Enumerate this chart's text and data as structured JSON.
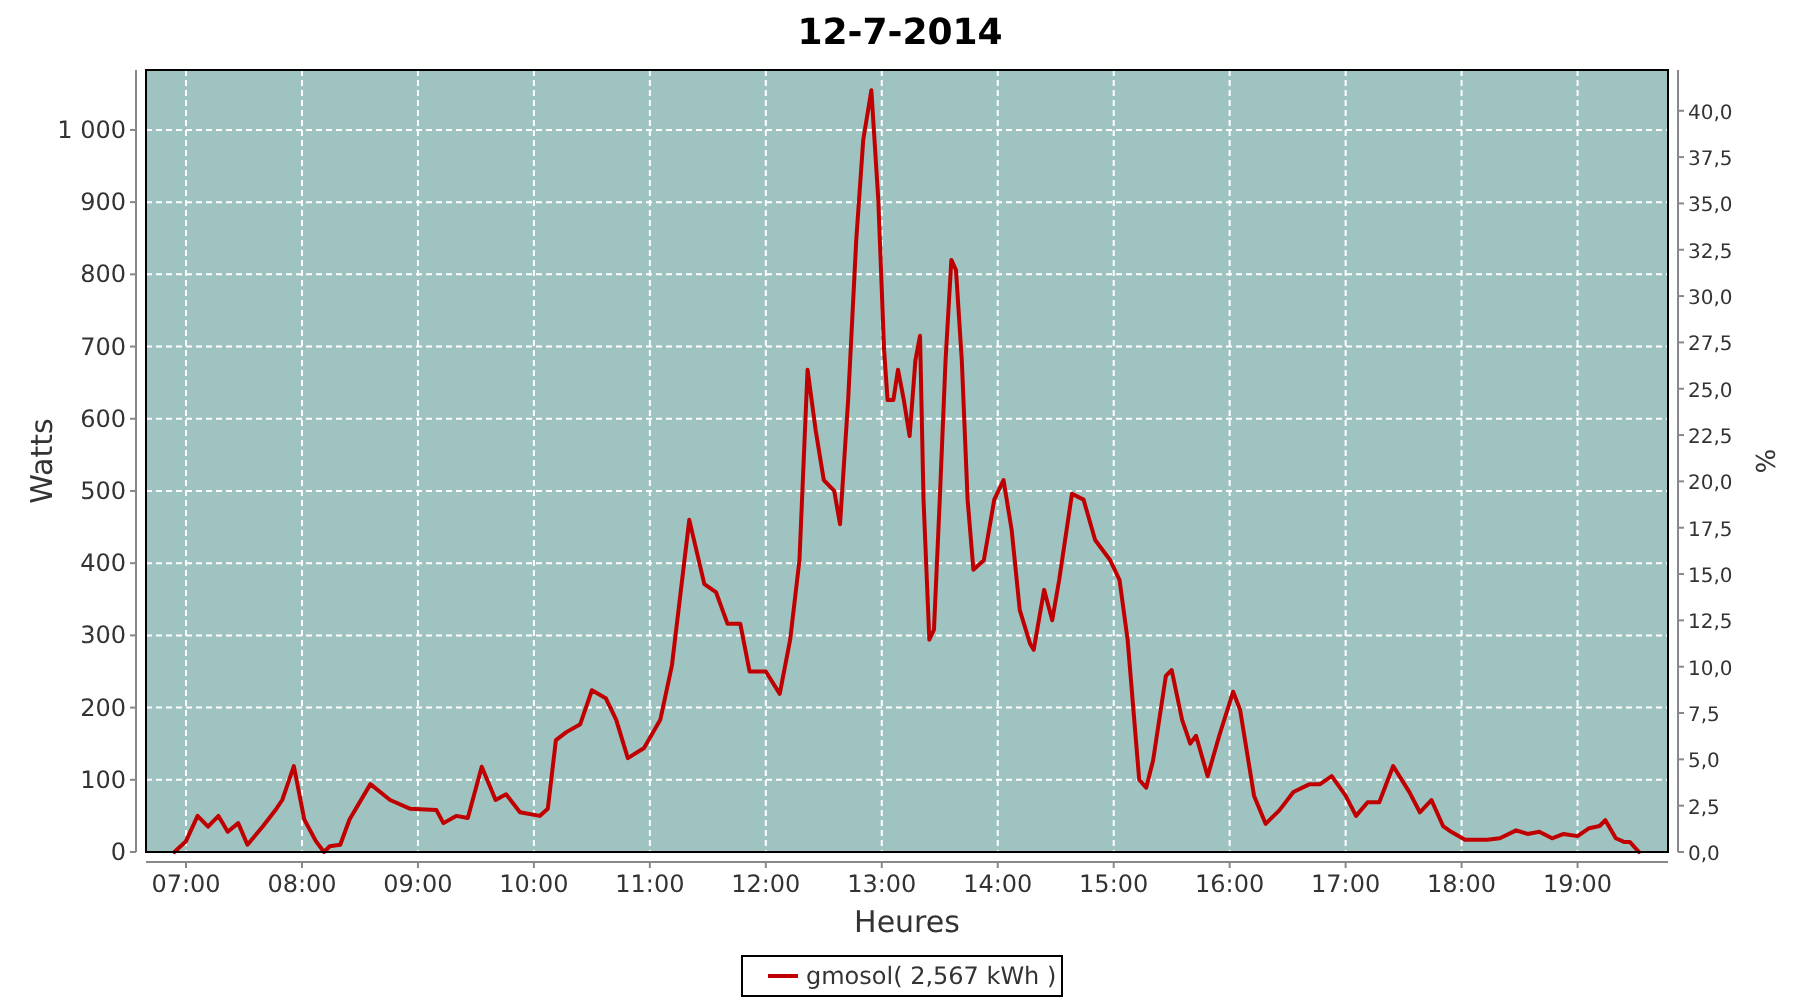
{
  "chart_data": {
    "type": "line",
    "title": "12-7-2014",
    "xlabel": "Heures",
    "ylabel": "Watts",
    "y2label": "%",
    "x": [
      6.9,
      7.0,
      7.1,
      7.19,
      7.28,
      7.36,
      7.45,
      7.53,
      7.66,
      7.78,
      7.83,
      7.93,
      8.02,
      8.12,
      8.19,
      8.24,
      8.33,
      8.41,
      8.59,
      8.76,
      8.93,
      9.16,
      9.22,
      9.33,
      9.43,
      9.55,
      9.67,
      9.76,
      9.88,
      10.05,
      10.12,
      10.19,
      10.28,
      10.4,
      10.5,
      10.62,
      10.71,
      10.81,
      10.95,
      11.09,
      11.19,
      11.34,
      11.47,
      11.57,
      11.67,
      11.78,
      11.86,
      12.0,
      12.12,
      12.21,
      12.29,
      12.36,
      12.43,
      12.5,
      12.59,
      12.64,
      12.71,
      12.78,
      12.84,
      12.91,
      12.97,
      13.02,
      13.05,
      13.1,
      13.14,
      13.19,
      13.24,
      13.29,
      13.33,
      13.36,
      13.41,
      13.45,
      13.5,
      13.55,
      13.6,
      13.64,
      13.69,
      13.74,
      13.79,
      13.88,
      13.97,
      14.05,
      14.12,
      14.19,
      14.28,
      14.31,
      14.4,
      14.47,
      14.53,
      14.64,
      14.74,
      14.84,
      14.97,
      15.05,
      15.12,
      15.22,
      15.28,
      15.34,
      15.45,
      15.5,
      15.59,
      15.66,
      15.71,
      15.81,
      15.91,
      16.03,
      16.09,
      16.21,
      16.31,
      16.43,
      16.55,
      16.69,
      16.78,
      16.88,
      17.0,
      17.09,
      17.19,
      17.29,
      17.41,
      17.55,
      17.64,
      17.74,
      17.84,
      17.91,
      18.03,
      18.12,
      18.22,
      18.33,
      18.47,
      18.57,
      18.67,
      18.78,
      18.88,
      19.0,
      19.1,
      19.19,
      19.24,
      19.33,
      19.4,
      19.45,
      19.53
    ],
    "series": [
      {
        "name": "gmosol( 2,567 kWh )",
        "color": "#c00000",
        "values": [
          0,
          15,
          50,
          35,
          50,
          28,
          40,
          10,
          35,
          60,
          72,
          119,
          45,
          15,
          0,
          8,
          10,
          45,
          94,
          72,
          60,
          58,
          40,
          50,
          47,
          118,
          72,
          80,
          55,
          50,
          60,
          155,
          166,
          177,
          224,
          213,
          183,
          130,
          144,
          183,
          258,
          460,
          371,
          360,
          316,
          316,
          250,
          250,
          219,
          294,
          404,
          668,
          584,
          515,
          500,
          454,
          626,
          848,
          986,
          1055,
          903,
          695,
          626,
          626,
          668,
          626,
          576,
          681,
          715,
          488,
          294,
          308,
          488,
          681,
          820,
          806,
          681,
          488,
          391,
          404,
          488,
          515,
          446,
          335,
          288,
          280,
          363,
          321,
          377,
          496,
          488,
          432,
          404,
          377,
          294,
          100,
          89,
          127,
          244,
          252,
          183,
          150,
          161,
          105,
          161,
          222,
          197,
          78,
          39,
          58,
          83,
          94,
          94,
          105,
          78,
          50,
          69,
          69,
          119,
          83,
          55,
          72,
          36,
          28,
          17,
          17,
          17,
          19,
          30,
          25,
          28,
          19,
          25,
          22,
          33,
          36,
          44,
          19,
          14,
          14,
          0
        ]
      }
    ],
    "xlim": [
      6.655,
      19.78
    ],
    "xticks": [
      {
        "value": 7,
        "label": "07:00"
      },
      {
        "value": 8,
        "label": "08:00"
      },
      {
        "value": 9,
        "label": "09:00"
      },
      {
        "value": 10,
        "label": "10:00"
      },
      {
        "value": 11,
        "label": "11:00"
      },
      {
        "value": 12,
        "label": "12:00"
      },
      {
        "value": 13,
        "label": "13:00"
      },
      {
        "value": 14,
        "label": "14:00"
      },
      {
        "value": 15,
        "label": "15:00"
      },
      {
        "value": 16,
        "label": "16:00"
      },
      {
        "value": 17,
        "label": "17:00"
      },
      {
        "value": 18,
        "label": "18:00"
      },
      {
        "value": 19,
        "label": "19:00"
      }
    ],
    "ylim": [
      0,
      1083
    ],
    "yticks": [
      0,
      100,
      200,
      300,
      400,
      500,
      600,
      700,
      800,
      900,
      {
        "value": 1000,
        "label": "1 000"
      }
    ],
    "y2lim": [
      0,
      42.2
    ],
    "y2ticks": [
      {
        "value": 0,
        "label": "0,0"
      },
      {
        "value": 2.5,
        "label": "2,5"
      },
      {
        "value": 5,
        "label": "5,0"
      },
      {
        "value": 7.5,
        "label": "7,5"
      },
      {
        "value": 10,
        "label": "10,0"
      },
      {
        "value": 12.5,
        "label": "12,5"
      },
      {
        "value": 15,
        "label": "15,0"
      },
      {
        "value": 17.5,
        "label": "17,5"
      },
      {
        "value": 20,
        "label": "20,0"
      },
      {
        "value": 22.5,
        "label": "22,5"
      },
      {
        "value": 25,
        "label": "25,0"
      },
      {
        "value": 27.5,
        "label": "27,5"
      },
      {
        "value": 30,
        "label": "30,0"
      },
      {
        "value": 32.5,
        "label": "32,5"
      },
      {
        "value": 35,
        "label": "35,0"
      },
      {
        "value": 37.5,
        "label": "37,5"
      },
      {
        "value": 40,
        "label": "40,0"
      }
    ],
    "grid": true,
    "legend": "bottom",
    "marker": "none",
    "line_style": "solid"
  }
}
